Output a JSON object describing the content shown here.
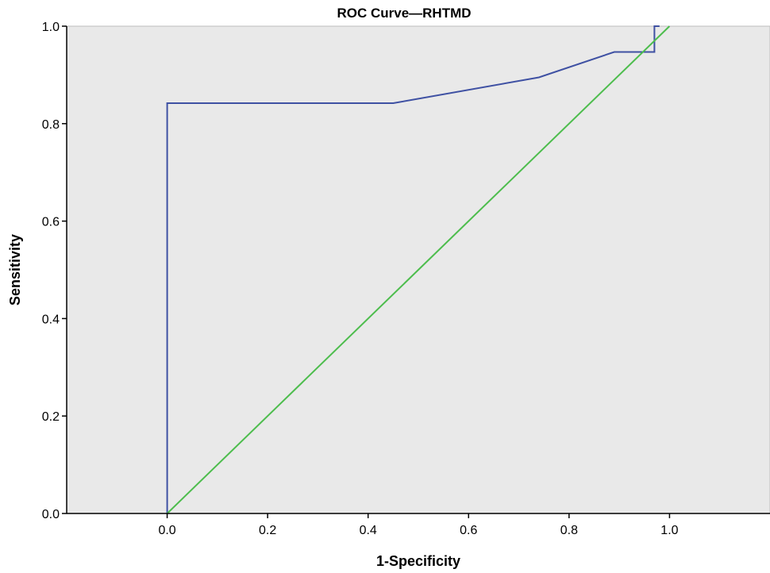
{
  "chart_data": {
    "type": "line",
    "title": "ROC Curve—RHTMD",
    "xlabel": "1-Specificity",
    "ylabel": "Sensitivity",
    "xlim": [
      -0.2,
      1.2
    ],
    "ylim": [
      0.0,
      1.0
    ],
    "xticks": [
      "0.0",
      "0.2",
      "0.4",
      "0.6",
      "0.8",
      "1.0"
    ],
    "yticks": [
      "0.0",
      "0.2",
      "0.4",
      "0.6",
      "0.8",
      "1.0"
    ],
    "grid": false,
    "legend": "none",
    "plot_background": "#e9e9e9",
    "series": [
      {
        "color": "#3f51a3",
        "x": [
          0.0,
          0.0,
          0.45,
          0.74,
          0.89,
          0.97,
          0.97,
          0.98
        ],
        "y": [
          0.0,
          0.842,
          0.842,
          0.895,
          0.947,
          0.947,
          1.0,
          1.0
        ]
      },
      {
        "color": "#4dbd4d",
        "x": [
          0.0,
          1.0
        ],
        "y": [
          0.0,
          1.0
        ]
      }
    ]
  }
}
